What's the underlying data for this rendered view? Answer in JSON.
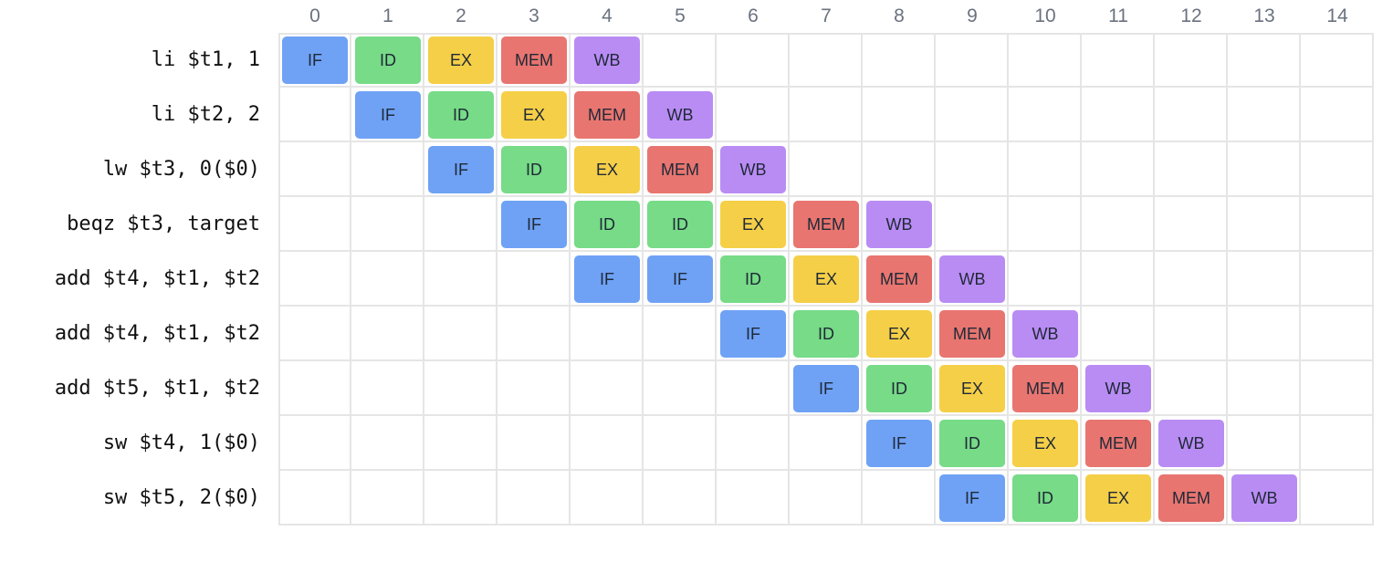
{
  "cycles": [
    "0",
    "1",
    "2",
    "3",
    "4",
    "5",
    "6",
    "7",
    "8",
    "9",
    "10",
    "11",
    "12",
    "13",
    "14"
  ],
  "stage_colors": {
    "IF": "#6fa2f5",
    "ID": "#77db87",
    "EX": "#f5cf47",
    "MEM": "#e87570",
    "WB": "#b98cf4"
  },
  "instructions": [
    {
      "label": "li $t1, 1",
      "stages": [
        {
          "cycle": 0,
          "name": "IF"
        },
        {
          "cycle": 1,
          "name": "ID"
        },
        {
          "cycle": 2,
          "name": "EX"
        },
        {
          "cycle": 3,
          "name": "MEM"
        },
        {
          "cycle": 4,
          "name": "WB"
        }
      ]
    },
    {
      "label": "li $t2, 2",
      "stages": [
        {
          "cycle": 1,
          "name": "IF"
        },
        {
          "cycle": 2,
          "name": "ID"
        },
        {
          "cycle": 3,
          "name": "EX"
        },
        {
          "cycle": 4,
          "name": "MEM"
        },
        {
          "cycle": 5,
          "name": "WB"
        }
      ]
    },
    {
      "label": "lw $t3, 0($0)",
      "stages": [
        {
          "cycle": 2,
          "name": "IF"
        },
        {
          "cycle": 3,
          "name": "ID"
        },
        {
          "cycle": 4,
          "name": "EX"
        },
        {
          "cycle": 5,
          "name": "MEM"
        },
        {
          "cycle": 6,
          "name": "WB"
        }
      ]
    },
    {
      "label": "beqz $t3, target",
      "stages": [
        {
          "cycle": 3,
          "name": "IF"
        },
        {
          "cycle": 4,
          "name": "ID"
        },
        {
          "cycle": 5,
          "name": "ID"
        },
        {
          "cycle": 6,
          "name": "EX"
        },
        {
          "cycle": 7,
          "name": "MEM"
        },
        {
          "cycle": 8,
          "name": "WB"
        }
      ]
    },
    {
      "label": "add $t4, $t1, $t2",
      "stages": [
        {
          "cycle": 4,
          "name": "IF"
        },
        {
          "cycle": 5,
          "name": "IF"
        },
        {
          "cycle": 6,
          "name": "ID"
        },
        {
          "cycle": 7,
          "name": "EX"
        },
        {
          "cycle": 8,
          "name": "MEM"
        },
        {
          "cycle": 9,
          "name": "WB"
        }
      ]
    },
    {
      "label": "add $t4, $t1, $t2",
      "stages": [
        {
          "cycle": 6,
          "name": "IF"
        },
        {
          "cycle": 7,
          "name": "ID"
        },
        {
          "cycle": 8,
          "name": "EX"
        },
        {
          "cycle": 9,
          "name": "MEM"
        },
        {
          "cycle": 10,
          "name": "WB"
        }
      ]
    },
    {
      "label": "add $t5, $t1, $t2",
      "stages": [
        {
          "cycle": 7,
          "name": "IF"
        },
        {
          "cycle": 8,
          "name": "ID"
        },
        {
          "cycle": 9,
          "name": "EX"
        },
        {
          "cycle": 10,
          "name": "MEM"
        },
        {
          "cycle": 11,
          "name": "WB"
        }
      ]
    },
    {
      "label": "sw $t4, 1($0)",
      "stages": [
        {
          "cycle": 8,
          "name": "IF"
        },
        {
          "cycle": 9,
          "name": "ID"
        },
        {
          "cycle": 10,
          "name": "EX"
        },
        {
          "cycle": 11,
          "name": "MEM"
        },
        {
          "cycle": 12,
          "name": "WB"
        }
      ]
    },
    {
      "label": "sw $t5, 2($0)",
      "stages": [
        {
          "cycle": 9,
          "name": "IF"
        },
        {
          "cycle": 10,
          "name": "ID"
        },
        {
          "cycle": 11,
          "name": "EX"
        },
        {
          "cycle": 12,
          "name": "MEM"
        },
        {
          "cycle": 13,
          "name": "WB"
        }
      ]
    }
  ]
}
